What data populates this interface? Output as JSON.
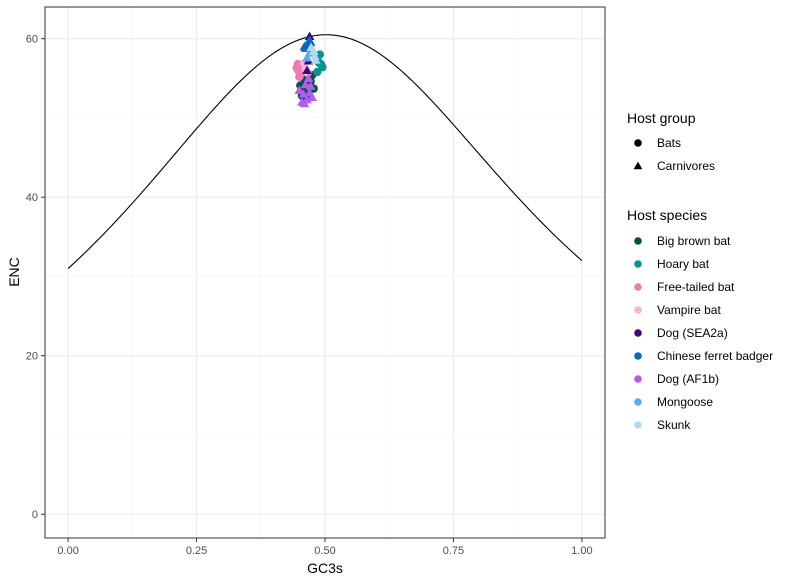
{
  "chart_data": {
    "type": "scatter",
    "xlabel": "GC3s",
    "ylabel": "ENC",
    "xlim": [
      -0.045,
      1.045
    ],
    "ylim": [
      -3.0,
      64.0
    ],
    "x_ticks": [
      0.0,
      0.25,
      0.5,
      0.75,
      1.0
    ],
    "x_tick_labels": [
      "0.00",
      "0.25",
      "0.50",
      "0.75",
      "1.00"
    ],
    "y_ticks": [
      0,
      20,
      40,
      60
    ],
    "y_tick_labels": [
      "0",
      "20",
      "40",
      "60"
    ],
    "grid": true,
    "legend_position": "right",
    "expected_curve": {
      "type": "line",
      "formula": "ENC = 2 + s + 29 / (s^2 + (1 - s)^2)",
      "color": "#000000"
    },
    "legends": [
      {
        "title": "Host group",
        "items": [
          {
            "label": "Bats",
            "shape": "circle"
          },
          {
            "label": "Carnivores",
            "shape": "triangle"
          }
        ]
      },
      {
        "title": "Host species",
        "items": [
          {
            "label": "Big brown bat",
            "color": "#0b4f4c"
          },
          {
            "label": "Hoary bat",
            "color": "#0d9191"
          },
          {
            "label": "Free-tailed bat",
            "color": "#f078b4"
          },
          {
            "label": "Vampire bat",
            "color": "#f4b6d2"
          },
          {
            "label": "Dog (SEA2a)",
            "color": "#3d0a73"
          },
          {
            "label": "Chinese ferret badger",
            "color": "#0a67c0"
          },
          {
            "label": "Dog (AF1b)",
            "color": "#b25cf0"
          },
          {
            "label": "Mongoose",
            "color": "#60a7ee"
          },
          {
            "label": "Skunk",
            "color": "#b2d8f2"
          }
        ]
      }
    ],
    "series": [
      {
        "name": "Big brown bat",
        "group": "Bats",
        "color": "#0b4f4c",
        "points": [
          [
            0.455,
            52.8
          ],
          [
            0.46,
            53.5
          ],
          [
            0.465,
            54.2
          ],
          [
            0.47,
            55.1
          ],
          [
            0.458,
            53.9
          ],
          [
            0.472,
            54.6
          ],
          [
            0.463,
            52.4
          ],
          [
            0.478,
            53.7
          ],
          [
            0.452,
            54.1
          ],
          [
            0.468,
            53.1
          ],
          [
            0.475,
            55.4
          ],
          [
            0.46,
            54.9
          ]
        ]
      },
      {
        "name": "Hoary bat",
        "group": "Bats",
        "color": "#0d9191",
        "points": [
          [
            0.488,
            57.0
          ],
          [
            0.492,
            56.8
          ],
          [
            0.49,
            58.0
          ],
          [
            0.485,
            55.8
          ],
          [
            0.495,
            56.4
          ],
          [
            0.483,
            57.6
          ]
        ]
      },
      {
        "name": "Free-tailed bat",
        "group": "Bats",
        "color": "#f078b4",
        "points": [
          [
            0.448,
            56.0
          ],
          [
            0.452,
            55.5
          ],
          [
            0.445,
            56.3
          ],
          [
            0.455,
            56.4
          ],
          [
            0.45,
            55.2
          ],
          [
            0.447,
            56.8
          ]
        ]
      },
      {
        "name": "Vampire bat",
        "group": "Bats",
        "color": "#f4b6d2",
        "points": [
          [
            0.462,
            56.2
          ],
          [
            0.466,
            55.7
          ],
          [
            0.46,
            56.9
          ]
        ]
      },
      {
        "name": "Dog (SEA2a)",
        "group": "Carnivores",
        "color": "#3d0a73",
        "points": [
          [
            0.47,
            60.3
          ],
          [
            0.465,
            56.0
          ],
          [
            0.468,
            57.2
          ]
        ]
      },
      {
        "name": "Chinese ferret badger",
        "group": "Carnivores",
        "color": "#0a67c0",
        "points": [
          [
            0.465,
            59.3
          ],
          [
            0.47,
            59.8
          ],
          [
            0.462,
            58.8
          ],
          [
            0.472,
            59.5
          ],
          [
            0.46,
            59.0
          ]
        ]
      },
      {
        "name": "Dog (AF1b)",
        "group": "Carnivores",
        "color": "#b25cf0",
        "points": [
          [
            0.455,
            52.0
          ],
          [
            0.46,
            51.8
          ],
          [
            0.465,
            52.3
          ],
          [
            0.47,
            53.2
          ],
          [
            0.475,
            52.6
          ],
          [
            0.458,
            53.0
          ],
          [
            0.462,
            54.2
          ],
          [
            0.468,
            55.0
          ],
          [
            0.45,
            53.5
          ],
          [
            0.472,
            54.0
          ]
        ]
      },
      {
        "name": "Mongoose",
        "group": "Carnivores",
        "color": "#60a7ee",
        "points": [
          [
            0.47,
            58.2
          ],
          [
            0.465,
            57.6
          ],
          [
            0.475,
            58.6
          ]
        ]
      },
      {
        "name": "Skunk",
        "group": "Carnivores",
        "color": "#b2d8f2",
        "points": [
          [
            0.478,
            58.4
          ],
          [
            0.48,
            57.8
          ],
          [
            0.473,
            58.9
          ],
          [
            0.482,
            57.3
          ]
        ]
      }
    ]
  }
}
